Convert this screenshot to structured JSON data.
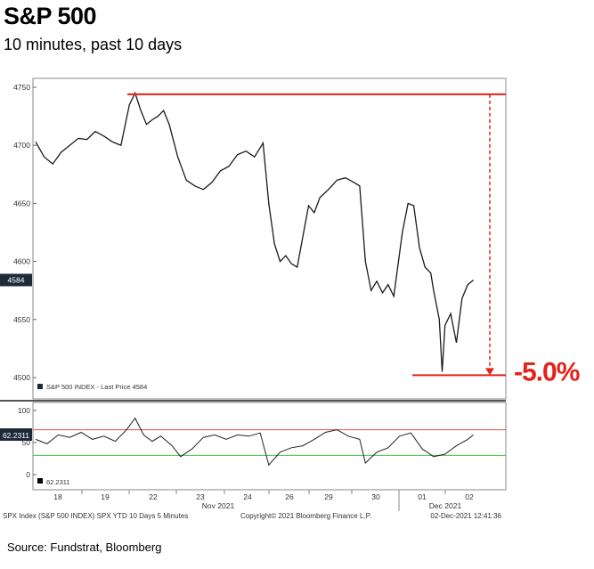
{
  "header": {
    "title": "S&P 500",
    "subtitle": "10 minutes, past 10 days"
  },
  "chart_data": [
    {
      "type": "line",
      "title": "S&P 500",
      "subtitle": "10 minutes, past 10 days",
      "series": [
        {
          "name": "S&P 500 INDEX - Last Price",
          "points": [
            [
              0,
              4703
            ],
            [
              0.3,
              4690
            ],
            [
              0.6,
              4684
            ],
            [
              0.9,
              4694
            ],
            [
              1.2,
              4700
            ],
            [
              1.5,
              4706
            ],
            [
              1.8,
              4705
            ],
            [
              2.1,
              4712
            ],
            [
              2.4,
              4708
            ],
            [
              2.7,
              4703
            ],
            [
              3.0,
              4700
            ],
            [
              3.3,
              4735
            ],
            [
              3.5,
              4745
            ],
            [
              3.7,
              4730
            ],
            [
              3.9,
              4718
            ],
            [
              4.1,
              4722
            ],
            [
              4.3,
              4725
            ],
            [
              4.5,
              4730
            ],
            [
              4.7,
              4718
            ],
            [
              5.0,
              4690
            ],
            [
              5.3,
              4670
            ],
            [
              5.6,
              4665
            ],
            [
              5.9,
              4662
            ],
            [
              6.2,
              4668
            ],
            [
              6.5,
              4678
            ],
            [
              6.8,
              4682
            ],
            [
              7.1,
              4692
            ],
            [
              7.4,
              4695
            ],
            [
              7.7,
              4690
            ],
            [
              8.0,
              4702
            ],
            [
              8.2,
              4650
            ],
            [
              8.4,
              4615
            ],
            [
              8.6,
              4600
            ],
            [
              8.8,
              4605
            ],
            [
              9.0,
              4598
            ],
            [
              9.2,
              4595
            ],
            [
              9.6,
              4648
            ],
            [
              9.8,
              4642
            ],
            [
              10.0,
              4655
            ],
            [
              10.3,
              4662
            ],
            [
              10.6,
              4670
            ],
            [
              10.9,
              4672
            ],
            [
              11.2,
              4668
            ],
            [
              11.4,
              4665
            ],
            [
              11.6,
              4600
            ],
            [
              11.8,
              4575
            ],
            [
              12.0,
              4583
            ],
            [
              12.2,
              4573
            ],
            [
              12.4,
              4580
            ],
            [
              12.6,
              4570
            ],
            [
              12.9,
              4625
            ],
            [
              13.1,
              4650
            ],
            [
              13.3,
              4648
            ],
            [
              13.5,
              4612
            ],
            [
              13.7,
              4595
            ],
            [
              13.9,
              4590
            ],
            [
              14.0,
              4575
            ],
            [
              14.2,
              4550
            ],
            [
              14.3,
              4505
            ],
            [
              14.4,
              4545
            ],
            [
              14.6,
              4555
            ],
            [
              14.8,
              4530
            ],
            [
              15.0,
              4568
            ],
            [
              15.2,
              4580
            ],
            [
              15.4,
              4584
            ]
          ]
        }
      ],
      "last_price_label": "4584",
      "legend_text": "S&P 500 INDEX - Last Price 4584",
      "y_ticks": [
        "4750",
        "4700",
        "4650",
        "4600",
        "4550",
        "4500"
      ],
      "ylim": [
        4492,
        4755
      ],
      "x_tick_labels": [
        "18",
        "19",
        "22",
        "23",
        "24",
        "26",
        "29",
        "30",
        "01",
        "02"
      ],
      "x_month_labels": [
        "Nov 2021",
        "Dec 2021"
      ],
      "grid": false,
      "annotations": [
        {
          "text": "-5.0%",
          "color": "#e2231a",
          "from_value": 4744,
          "to_value": 4502
        }
      ]
    },
    {
      "type": "line",
      "title": "",
      "series": [
        {
          "name": "RSI",
          "points": [
            [
              0,
              55
            ],
            [
              0.4,
              48
            ],
            [
              0.8,
              62
            ],
            [
              1.2,
              58
            ],
            [
              1.6,
              66
            ],
            [
              2.0,
              55
            ],
            [
              2.4,
              60
            ],
            [
              2.8,
              52
            ],
            [
              3.2,
              70
            ],
            [
              3.5,
              88
            ],
            [
              3.8,
              62
            ],
            [
              4.1,
              52
            ],
            [
              4.4,
              60
            ],
            [
              4.8,
              45
            ],
            [
              5.1,
              28
            ],
            [
              5.5,
              40
            ],
            [
              5.9,
              58
            ],
            [
              6.3,
              62
            ],
            [
              6.7,
              55
            ],
            [
              7.1,
              62
            ],
            [
              7.5,
              60
            ],
            [
              7.9,
              65
            ],
            [
              8.2,
              15
            ],
            [
              8.6,
              35
            ],
            [
              9.0,
              42
            ],
            [
              9.4,
              45
            ],
            [
              9.8,
              55
            ],
            [
              10.2,
              66
            ],
            [
              10.6,
              70
            ],
            [
              11.0,
              60
            ],
            [
              11.4,
              55
            ],
            [
              11.6,
              18
            ],
            [
              12.0,
              35
            ],
            [
              12.4,
              42
            ],
            [
              12.8,
              60
            ],
            [
              13.2,
              65
            ],
            [
              13.6,
              40
            ],
            [
              14.0,
              28
            ],
            [
              14.4,
              32
            ],
            [
              14.8,
              45
            ],
            [
              15.2,
              55
            ],
            [
              15.4,
              62
            ]
          ]
        }
      ],
      "last_value_label": "62.2311",
      "legend_text": "62.2311",
      "y_ticks": [
        "100",
        "50",
        "0"
      ],
      "ylim": [
        0,
        100
      ],
      "overbought": 70,
      "oversold": 30
    }
  ],
  "footer": {
    "left": "SPX Index (S&P 500 INDEX) SPX YTD 10 Days 5 Minutes",
    "center": "Copyright© 2021 Bloomberg Finance L.P.",
    "right": "02-Dec-2021 12:41:36"
  },
  "source_note": "Source: Fundstrat, Bloomberg",
  "colors": {
    "price": "#1a1a1a",
    "annotation": "#e2231a",
    "overbought": "#e05050",
    "oversold": "#40c040",
    "price_label_bg": "#1e2a3a"
  }
}
